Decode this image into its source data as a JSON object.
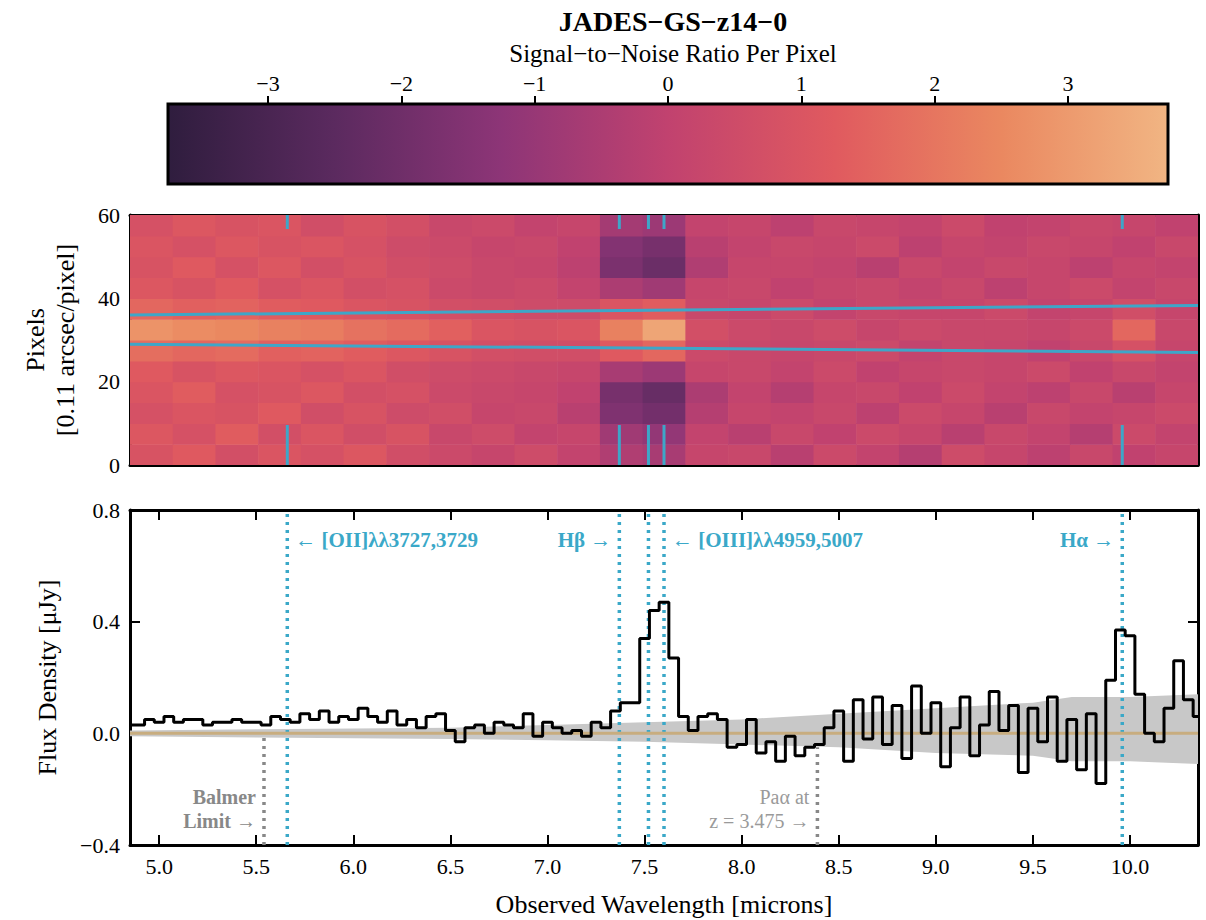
{
  "chart_data": [
    {
      "type": "heatmap",
      "title": "JADES−GS−z14−0",
      "colorbar": {
        "label": "Signal−to−Noise Ratio Per Pixel",
        "range": [
          -3.75,
          3.75
        ],
        "ticks": [
          {
            "value": -3,
            "label": "−3"
          },
          {
            "value": -2,
            "label": "−2"
          },
          {
            "value": -1,
            "label": "−1"
          },
          0,
          1,
          2,
          3
        ]
      },
      "ylabel": "Pixels\n[0.11 arcsec/pixel]",
      "xlim": [
        4.85,
        10.35
      ],
      "xticks": [
        5,
        5.5,
        6,
        6.5,
        7,
        7.5,
        8,
        8.5,
        9,
        9.5,
        10
      ],
      "ylim": [
        0,
        60
      ],
      "yticks": [
        0,
        20,
        40,
        60
      ],
      "tick_labels": "y",
      "x_edges": [
        4.85,
        5.07,
        5.29,
        5.51,
        5.73,
        5.95,
        6.17,
        6.39,
        6.61,
        6.83,
        7.05,
        7.27,
        7.49,
        7.71,
        7.93,
        8.15,
        8.37,
        8.59,
        8.81,
        9.03,
        9.25,
        9.47,
        9.69,
        9.91,
        10.13,
        10.35
      ],
      "y_edges": [
        0,
        5,
        10,
        15,
        20,
        25,
        30,
        35,
        40,
        45,
        50,
        55,
        60
      ],
      "cells": [
        [
          0.9,
          1.2,
          0.7,
          1.0,
          0.8,
          1.1,
          0.6,
          0.4,
          0.2,
          0.5,
          0.1,
          -0.4,
          -0.6,
          0.2,
          0.3,
          -0.2,
          0.4,
          0.1,
          -0.3,
          0.5,
          0.2,
          -0.1,
          0.3,
          0.0,
          0.2
        ],
        [
          1.1,
          0.8,
          1.3,
          0.7,
          1.0,
          0.6,
          0.9,
          0.3,
          0.5,
          0.1,
          0.2,
          -0.8,
          -1.1,
          0.1,
          -0.2,
          0.3,
          0.0,
          0.4,
          0.2,
          -0.2,
          0.3,
          0.1,
          -0.3,
          0.4,
          0.1
        ],
        [
          0.8,
          1.0,
          0.9,
          1.2,
          0.6,
          0.9,
          0.5,
          0.6,
          0.2,
          0.3,
          -0.2,
          -1.6,
          -1.9,
          -0.3,
          0.2,
          0.1,
          0.3,
          -0.1,
          0.4,
          0.2,
          -0.2,
          0.3,
          0.1,
          0.2,
          0.4
        ],
        [
          1.0,
          1.3,
          0.8,
          0.9,
          1.1,
          0.7,
          0.8,
          0.4,
          0.3,
          0.2,
          0.0,
          -1.8,
          -2.2,
          -0.5,
          0.1,
          -0.3,
          0.2,
          0.3,
          0.0,
          0.4,
          0.1,
          -0.1,
          0.3,
          -0.2,
          0.2
        ],
        [
          1.2,
          0.9,
          1.1,
          1.0,
          0.8,
          1.0,
          0.6,
          0.5,
          0.4,
          0.3,
          0.2,
          -0.6,
          -0.9,
          0.2,
          0.3,
          0.1,
          0.4,
          0.0,
          0.2,
          0.3,
          0.2,
          0.4,
          0.0,
          0.3,
          0.1
        ],
        [
          1.8,
          1.6,
          1.7,
          1.4,
          1.5,
          1.3,
          1.1,
          0.9,
          0.7,
          0.6,
          0.6,
          1.2,
          1.6,
          0.4,
          0.3,
          0.2,
          0.3,
          0.4,
          0.1,
          0.3,
          0.2,
          0.0,
          0.3,
          0.8,
          0.2
        ],
        [
          2.8,
          2.6,
          2.5,
          2.3,
          2.2,
          1.9,
          1.7,
          1.4,
          1.0,
          0.9,
          1.0,
          2.3,
          3.3,
          0.7,
          0.4,
          0.3,
          0.5,
          0.2,
          0.4,
          0.3,
          0.3,
          0.2,
          0.4,
          1.6,
          0.3
        ],
        [
          1.6,
          1.4,
          1.5,
          1.3,
          1.2,
          1.0,
          0.9,
          0.7,
          0.6,
          0.5,
          0.5,
          1.0,
          1.3,
          0.3,
          0.2,
          0.4,
          0.1,
          0.3,
          0.2,
          0.2,
          0.4,
          0.1,
          0.2,
          0.6,
          0.2
        ],
        [
          1.1,
          0.9,
          1.2,
          0.8,
          1.0,
          0.7,
          0.8,
          0.4,
          0.3,
          0.4,
          0.1,
          -0.5,
          -0.8,
          0.2,
          0.3,
          0.0,
          0.2,
          0.3,
          0.1,
          0.3,
          -0.1,
          0.2,
          0.4,
          0.1,
          0.3
        ],
        [
          0.9,
          1.2,
          0.8,
          1.1,
          0.7,
          0.9,
          0.6,
          0.5,
          0.3,
          0.2,
          -0.1,
          -1.7,
          -2.1,
          -0.4,
          0.2,
          0.2,
          0.1,
          -0.2,
          0.3,
          0.1,
          0.3,
          0.2,
          -0.1,
          0.2,
          0.1
        ],
        [
          1.0,
          0.8,
          1.1,
          0.9,
          1.0,
          0.8,
          0.5,
          0.4,
          0.2,
          0.3,
          0.0,
          -1.5,
          -1.8,
          -0.2,
          0.1,
          0.3,
          0.2,
          0.4,
          -0.1,
          0.2,
          0.1,
          0.3,
          0.2,
          0.0,
          0.3
        ],
        [
          0.8,
          1.1,
          0.9,
          1.0,
          0.6,
          0.9,
          0.7,
          0.3,
          0.4,
          0.1,
          0.2,
          -0.7,
          -0.9,
          0.1,
          0.2,
          -0.1,
          0.3,
          0.2,
          0.1,
          0.4,
          0.0,
          0.1,
          0.3,
          0.2,
          0.0
        ]
      ],
      "aperture": {
        "color": "#3ea6c8",
        "upper": {
          "x": [
            4.85,
            10.35
          ],
          "y": [
            36,
            38.3
          ]
        },
        "lower": {
          "x": [
            4.85,
            10.35
          ],
          "y": [
            29,
            27
          ]
        }
      },
      "line_markers": [
        5.66,
        7.37,
        7.52,
        7.6,
        9.96
      ]
    },
    {
      "type": "line",
      "xlabel": "Observed Wavelength [microns]",
      "ylabel": "Flux Density [μJy]",
      "xlim": [
        4.85,
        10.35
      ],
      "xticks": [
        {
          "value": 5,
          "label": "5.0"
        },
        {
          "value": 5.5,
          "label": "5.5"
        },
        {
          "value": 6,
          "label": "6.0"
        },
        {
          "value": 6.5,
          "label": "6.5"
        },
        {
          "value": 7,
          "label": "7.0"
        },
        {
          "value": 7.5,
          "label": "7.5"
        },
        {
          "value": 8,
          "label": "8.0"
        },
        {
          "value": 8.5,
          "label": "8.5"
        },
        {
          "value": 9,
          "label": "9.0"
        },
        {
          "value": 9.5,
          "label": "9.5"
        },
        {
          "value": 10,
          "label": "10.0"
        }
      ],
      "ylim": [
        -0.4,
        0.8
      ],
      "yticks": [
        {
          "value": -0.4,
          "label": "−0.4"
        },
        {
          "value": 0,
          "label": "0.0"
        },
        {
          "value": 0.4,
          "label": "0.4"
        },
        {
          "value": 0.8,
          "label": "0.8"
        }
      ],
      "uncertainty": {
        "color": "#c8c8c8",
        "x": [
          4.85,
          5.5,
          6.5,
          7.0,
          7.5,
          8.0,
          8.5,
          9.0,
          9.5,
          9.7,
          10.0,
          10.35
        ],
        "upper": [
          0.01,
          0.015,
          0.02,
          0.03,
          0.04,
          0.05,
          0.07,
          0.09,
          0.11,
          0.13,
          0.13,
          0.14
        ],
        "lower": [
          -0.01,
          -0.015,
          -0.02,
          -0.025,
          -0.03,
          -0.04,
          -0.05,
          -0.07,
          -0.08,
          -0.1,
          -0.1,
          -0.11
        ]
      },
      "series": [
        {
          "type": "line",
          "color": "#c8ad7f",
          "x": [
            4.85,
            10.35
          ],
          "values": [
            0.0,
            0.0
          ]
        },
        {
          "type": "line",
          "line_style": "step",
          "color": "#000000",
          "x": [
            4.85,
            4.9,
            4.95,
            5.0,
            5.05,
            5.1,
            5.15,
            5.2,
            5.25,
            5.3,
            5.35,
            5.4,
            5.45,
            5.5,
            5.55,
            5.6,
            5.65,
            5.7,
            5.75,
            5.8,
            5.85,
            5.9,
            5.95,
            6.0,
            6.05,
            6.1,
            6.15,
            6.2,
            6.25,
            6.3,
            6.35,
            6.4,
            6.45,
            6.5,
            6.55,
            6.6,
            6.65,
            6.7,
            6.75,
            6.8,
            6.85,
            6.9,
            6.95,
            7.0,
            7.05,
            7.1,
            7.15,
            7.2,
            7.25,
            7.3,
            7.35,
            7.4,
            7.45,
            7.5,
            7.55,
            7.6,
            7.65,
            7.7,
            7.75,
            7.8,
            7.85,
            7.9,
            7.95,
            8.0,
            8.05,
            8.1,
            8.15,
            8.2,
            8.25,
            8.3,
            8.35,
            8.4,
            8.45,
            8.5,
            8.55,
            8.6,
            8.65,
            8.7,
            8.75,
            8.8,
            8.85,
            8.9,
            8.95,
            9.0,
            9.05,
            9.1,
            9.15,
            9.2,
            9.25,
            9.3,
            9.35,
            9.4,
            9.45,
            9.5,
            9.55,
            9.6,
            9.65,
            9.7,
            9.75,
            9.8,
            9.85,
            9.9,
            9.95,
            10.0,
            10.05,
            10.1,
            10.15,
            10.2,
            10.25,
            10.3,
            10.35
          ],
          "values": [
            0.03,
            0.03,
            0.05,
            0.04,
            0.06,
            0.04,
            0.05,
            0.05,
            0.03,
            0.04,
            0.04,
            0.05,
            0.04,
            0.04,
            0.03,
            0.06,
            0.05,
            0.04,
            0.07,
            0.05,
            0.08,
            0.04,
            0.06,
            0.05,
            0.09,
            0.06,
            0.04,
            0.08,
            0.03,
            0.05,
            0.02,
            0.06,
            0.07,
            0.01,
            -0.03,
            0.02,
            0.03,
            0.0,
            0.04,
            0.03,
            0.02,
            0.07,
            -0.01,
            0.04,
            0.02,
            0.0,
            0.01,
            -0.01,
            0.04,
            0.02,
            0.08,
            0.11,
            0.11,
            0.34,
            0.44,
            0.47,
            0.27,
            0.06,
            0.01,
            0.06,
            0.07,
            0.05,
            -0.05,
            -0.04,
            0.05,
            -0.07,
            -0.03,
            -0.1,
            -0.01,
            -0.08,
            -0.05,
            -0.04,
            0.02,
            0.08,
            -0.1,
            0.12,
            -0.02,
            0.13,
            -0.04,
            0.1,
            -0.09,
            0.17,
            0.0,
            0.11,
            -0.12,
            0.02,
            0.13,
            -0.08,
            0.03,
            0.15,
            0.01,
            0.1,
            -0.14,
            0.09,
            -0.03,
            0.13,
            -0.1,
            0.05,
            -0.13,
            0.07,
            -0.18,
            0.19,
            0.37,
            0.35,
            0.14,
            0.0,
            -0.03,
            0.09,
            0.26,
            0.12,
            0.06
          ]
        }
      ],
      "emission_lines": {
        "color": "#3aa8c8",
        "lines": [
          {
            "x": 5.66,
            "label": "← [OII]λλ3727,3729"
          },
          {
            "x": 7.37,
            "label": "Hβ →"
          },
          {
            "x": 7.52
          },
          {
            "x": 7.6,
            "label": "← [OIII]λλ4959,5007"
          },
          {
            "x": 9.96,
            "label": "Hα →"
          }
        ]
      },
      "limits": {
        "color": "#888888",
        "lines": [
          {
            "x": 5.54,
            "y_top": 0.0,
            "label": "Balmer\nLimit →"
          },
          {
            "x": 8.39,
            "y_top": -0.05,
            "label": "Paα at\nz = 3.475 →"
          }
        ]
      }
    }
  ]
}
